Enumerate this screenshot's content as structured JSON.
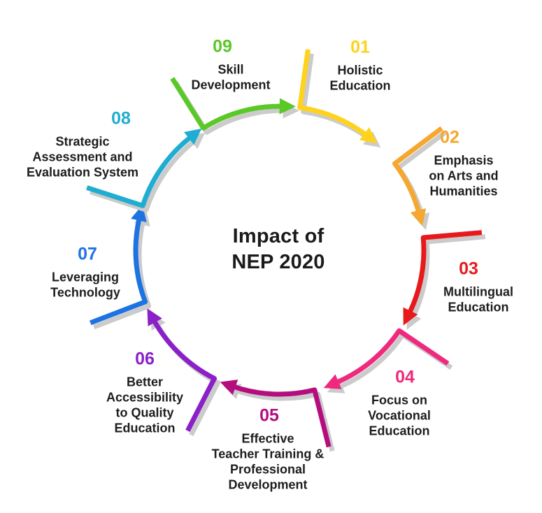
{
  "title": "Impact of\nNEP 2020",
  "palette": {
    "background": "#ffffff",
    "text": "#1d1d1d",
    "shadow": "#cbcbcb"
  },
  "items": [
    {
      "number": "01",
      "label": "Holistic\nEducation",
      "color": "#FFD21E"
    },
    {
      "number": "02",
      "label": "Emphasis\non Arts and\nHumanities",
      "color": "#F5A72F"
    },
    {
      "number": "03",
      "label": "Multilingual\nEducation",
      "color": "#E8191C"
    },
    {
      "number": "04",
      "label": "Focus on\nVocational\nEducation",
      "color": "#EF2A7E"
    },
    {
      "number": "05",
      "label": "Effective\nTeacher Training &\nProfessional\nDevelopment",
      "color": "#B50D7E"
    },
    {
      "number": "06",
      "label": "Better\nAccessibility\nto Quality\nEducation",
      "color": "#8B20C9"
    },
    {
      "number": "07",
      "label": "Leveraging\nTechnology",
      "color": "#1E73E2"
    },
    {
      "number": "08",
      "label": "Strategic\nAssessment and\nEvaluation System",
      "color": "#1FADD2"
    },
    {
      "number": "09",
      "label": "Skill\nDevelopment",
      "color": "#5AC827"
    }
  ]
}
